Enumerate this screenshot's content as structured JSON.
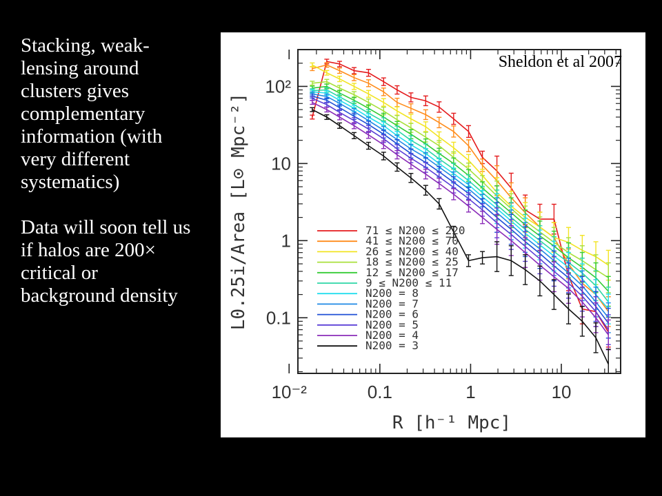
{
  "slide": {
    "paragraphs": [
      "Stacking, weak-lensing around clusters gives complementary information (with very different systematics)",
      "Data will soon tell us if halos are 200× critical or background density"
    ]
  },
  "citation": "Sheldon et al 2007",
  "chart_data": {
    "type": "line",
    "xlabel": "R  [h⁻¹ Mpc]",
    "ylabel": "L0.25i/Area [L⊙ Mpc⁻²]",
    "x_scale": "log",
    "y_scale": "log",
    "xlim": [
      0.0125,
      45
    ],
    "ylim": [
      0.019,
      300
    ],
    "x_ticks": [
      0.01,
      0.1,
      1,
      10
    ],
    "x_tick_labels": [
      "10⁻²",
      "0.1",
      "1",
      "10"
    ],
    "y_ticks": [
      0.1,
      1,
      10,
      100
    ],
    "y_tick_labels": [
      "0.1",
      "1",
      "10",
      "10²"
    ],
    "grid": false,
    "legend": "lower-left",
    "x": [
      0.018,
      0.026,
      0.036,
      0.052,
      0.075,
      0.11,
      0.155,
      0.22,
      0.32,
      0.45,
      0.65,
      0.95,
      1.35,
      1.95,
      2.8,
      4.0,
      5.8,
      8.3,
      12,
      17,
      24,
      33
    ],
    "series": [
      {
        "name": "71 ≤ N200 ≤ 220",
        "color": "#e41a1c",
        "values": [
          40,
          210,
          195,
          160,
          150,
          115,
          90,
          72,
          65,
          54,
          38,
          26,
          12,
          8,
          4.8,
          2.5,
          1.9,
          1.9,
          0.35,
          0.13,
          0.12,
          0.065
        ]
      },
      {
        "name": "41 ≤ N200 ≤ 70",
        "color": "#ff8c1a",
        "values": [
          170,
          190,
          160,
          130,
          110,
          85,
          62,
          52,
          43,
          34,
          26,
          17,
          9.5,
          6,
          3.6,
          2.3,
          1.5,
          1.1,
          0.5,
          0.28,
          0.2,
          0.12
        ]
      },
      {
        "name": "26 ≤ N200 ≤ 40",
        "color": "#f2e422",
        "values": [
          190,
          150,
          125,
          100,
          80,
          62,
          48,
          38,
          30,
          22,
          16,
          11,
          7,
          4.2,
          2.8,
          2.0,
          1.5,
          1.1,
          0.95,
          0.75,
          0.62,
          0.48
        ]
      },
      {
        "name": "18 ≤ N200 ≤ 25",
        "color": "#a8e03a",
        "values": [
          110,
          115,
          95,
          78,
          62,
          48,
          37,
          29,
          22,
          17,
          12,
          8.5,
          5.8,
          3.8,
          2.6,
          1.8,
          1.3,
          0.95,
          0.7,
          0.55,
          0.42,
          0.33
        ]
      },
      {
        "name": "12 ≤ N200 ≤ 17",
        "color": "#33cc33",
        "values": [
          95,
          100,
          82,
          66,
          52,
          40,
          31,
          24,
          18,
          13.5,
          10,
          7,
          4.8,
          3.3,
          2.3,
          1.6,
          1.15,
          0.85,
          0.6,
          0.45,
          0.33,
          0.22
        ]
      },
      {
        "name": "9 ≤ N200 ≤ 11",
        "color": "#2bd6a6",
        "values": [
          88,
          90,
          73,
          58,
          45,
          35,
          27,
          20,
          15.5,
          11.5,
          8.5,
          6,
          4.2,
          2.9,
          2.0,
          1.4,
          1.0,
          0.72,
          0.52,
          0.38,
          0.26,
          0.16
        ]
      },
      {
        "name": "N200 = 8",
        "color": "#22ddee",
        "values": [
          85,
          82,
          66,
          52,
          40,
          31,
          23,
          17.5,
          13.5,
          10,
          7.4,
          5.3,
          3.7,
          2.6,
          1.8,
          1.25,
          0.88,
          0.63,
          0.45,
          0.32,
          0.2,
          0.13
        ]
      },
      {
        "name": "N200 = 7",
        "color": "#1e88e5",
        "values": [
          80,
          74,
          60,
          47,
          36,
          27,
          20.5,
          15.5,
          12,
          9,
          6.6,
          4.7,
          3.3,
          2.3,
          1.6,
          1.1,
          0.78,
          0.55,
          0.38,
          0.26,
          0.16,
          0.1
        ]
      },
      {
        "name": "N200 = 6",
        "color": "#1f4fd6",
        "values": [
          75,
          66,
          53,
          41,
          32,
          24,
          18,
          13.5,
          10.3,
          7.8,
          5.7,
          4.1,
          2.9,
          2.0,
          1.4,
          0.97,
          0.68,
          0.47,
          0.33,
          0.22,
          0.14,
          0.085
        ]
      },
      {
        "name": "N200 = 5",
        "color": "#5a3fd6",
        "values": [
          70,
          58,
          46,
          36,
          28,
          21,
          15.5,
          11.7,
          8.9,
          6.7,
          4.9,
          3.5,
          2.5,
          1.7,
          1.2,
          0.84,
          0.58,
          0.4,
          0.28,
          0.19,
          0.12,
          0.07
        ]
      },
      {
        "name": "N200 = 4",
        "color": "#8a2bb8",
        "values": [
          62,
          50,
          40,
          31,
          23.5,
          17.5,
          13,
          9.8,
          7.3,
          5.5,
          4.0,
          2.8,
          2.0,
          1.4,
          1.0,
          0.7,
          0.48,
          0.34,
          0.24,
          0.16,
          0.1,
          0.06
        ]
      },
      {
        "name": "N200 = 3",
        "color": "#111111",
        "values": [
          50,
          40,
          31,
          23,
          17,
          12.5,
          9,
          6.5,
          4.5,
          3.0,
          1.3,
          0.55,
          0.6,
          0.62,
          0.55,
          0.42,
          0.3,
          0.2,
          0.13,
          0.09,
          0.055,
          0.025
        ]
      }
    ]
  }
}
